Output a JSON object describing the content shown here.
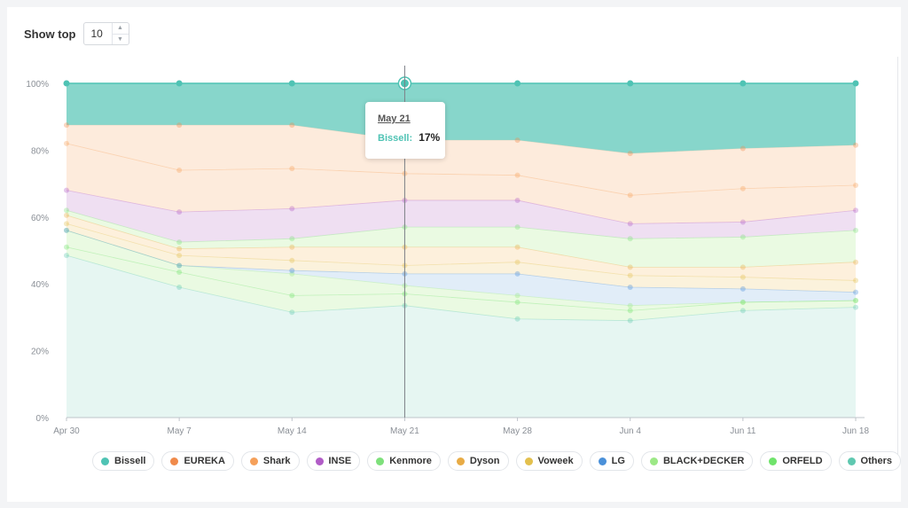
{
  "controls": {
    "show_top_label": "Show top",
    "show_top_value": "10",
    "up_icon": "chevron-up-icon",
    "down_icon": "chevron-down-icon"
  },
  "tooltip": {
    "date": "May 21",
    "series": "Bissell:",
    "value": "17%"
  },
  "chart_data": {
    "type": "area",
    "stacked": true,
    "normalized": true,
    "x": [
      "Apr 30",
      "May 7",
      "May 14",
      "May 21",
      "May 28",
      "Jun 4",
      "Jun 11",
      "Jun 18"
    ],
    "ylim": [
      0,
      100
    ],
    "yticks": [
      "0%",
      "20%",
      "40%",
      "60%",
      "80%",
      "100%"
    ],
    "grid": false,
    "legend_position": "bottom",
    "highlight_index": 3,
    "boundaries": {
      "order": [
        "Others",
        "ORFELD",
        "BLACK+DECKER",
        "LG",
        "Voweek",
        "Dyson",
        "Kenmore",
        "INSE",
        "Shark",
        "EUREKA",
        "Bissell"
      ],
      "top_of_series": [
        [
          48.5,
          39,
          31.5,
          33.5,
          29.5,
          29,
          32,
          33
        ],
        [
          51,
          43.5,
          36.5,
          37,
          34.5,
          32,
          34.5,
          35
        ],
        [
          56,
          45.5,
          43,
          39.5,
          36.5,
          33.5,
          34.5,
          35
        ],
        [
          56,
          45.5,
          44,
          43,
          43,
          39,
          38.5,
          37.5
        ],
        [
          58,
          48.5,
          47,
          45.5,
          46.5,
          42.5,
          42,
          41
        ],
        [
          60.5,
          50.5,
          51,
          51,
          51,
          45,
          45,
          46.5
        ],
        [
          62,
          52.5,
          53.5,
          57,
          57,
          53.5,
          54,
          56
        ],
        [
          68,
          61.5,
          62.5,
          65,
          65,
          58,
          58.5,
          62
        ],
        [
          82,
          74,
          74.5,
          73,
          72.5,
          66.5,
          68.5,
          69.5
        ],
        [
          87.5,
          87.5,
          87.5,
          83,
          83,
          79,
          80.5,
          81.5
        ],
        [
          100,
          100,
          100,
          100,
          100,
          100,
          100,
          100
        ]
      ]
    },
    "series": [
      {
        "name": "Bissell",
        "color": "#4fc3b4"
      },
      {
        "name": "EUREKA",
        "color": "#f08a4b"
      },
      {
        "name": "Shark",
        "color": "#f5a05a"
      },
      {
        "name": "INSE",
        "color": "#b15cc7"
      },
      {
        "name": "Kenmore",
        "color": "#7ee07b"
      },
      {
        "name": "Dyson",
        "color": "#e8ab45"
      },
      {
        "name": "Voweek",
        "color": "#e3c04d"
      },
      {
        "name": "LG",
        "color": "#4a90d9"
      },
      {
        "name": "BLACK+DECKER",
        "color": "#9ce886"
      },
      {
        "name": "ORFELD",
        "color": "#6fe36b"
      },
      {
        "name": "Others",
        "color": "#5fc8b0"
      }
    ],
    "fills": {
      "Bissell": "#87d6cb",
      "EUREKA": "#fdebdc",
      "Shark": "#fdebdc",
      "INSE": "#efdff2",
      "Kenmore": "#eafae2",
      "Dyson": "#fdf0dc",
      "Voweek": "#fbf2dc",
      "LG": "#e1edf8",
      "BLACK+DECKER": "#eafae2",
      "ORFELD": "#eafae2",
      "Others": "#e6f6f2"
    }
  }
}
